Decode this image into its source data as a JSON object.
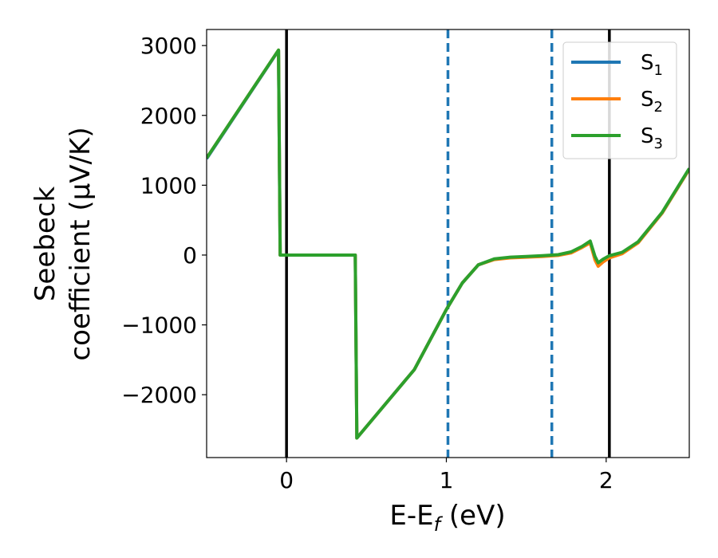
{
  "chart_data": {
    "type": "line",
    "xlabel": "E-E",
    "xlabel_sub": "f",
    "xlabel_unit": " (eV)",
    "ylabel_line1": "Seebeck",
    "ylabel_line2": "coefficient  (μV/K)",
    "xlim": [
      -0.5,
      2.52
    ],
    "ylim": [
      -2900,
      3230
    ],
    "xticks": [
      0,
      1,
      2
    ],
    "xtick_labels": [
      "0",
      "1",
      "2"
    ],
    "yticks": [
      -2000,
      -1000,
      0,
      1000,
      2000,
      3000
    ],
    "ytick_labels": [
      "−2000",
      "−1000",
      "0",
      "1000",
      "2000",
      "3000"
    ],
    "grid": false,
    "legend_position": "top-right",
    "vlines": [
      {
        "x": 0.0,
        "style": "solid",
        "color": "#000000"
      },
      {
        "x": 1.01,
        "style": "dashed",
        "color": "#1f77b4"
      },
      {
        "x": 1.66,
        "style": "dashed",
        "color": "#1f77b4"
      },
      {
        "x": 2.02,
        "style": "solid",
        "color": "#000000"
      }
    ],
    "series": [
      {
        "name": "S",
        "sub": "1",
        "color": "#1f77b4",
        "points": [
          [
            -0.5,
            1380
          ],
          [
            -0.05,
            2930
          ],
          [
            -0.04,
            0
          ],
          [
            0.43,
            0
          ],
          [
            0.44,
            -2620
          ],
          [
            0.8,
            -1640
          ],
          [
            1.0,
            -780
          ],
          [
            1.1,
            -400
          ],
          [
            1.2,
            -140
          ],
          [
            1.3,
            -60
          ],
          [
            1.4,
            -35
          ],
          [
            1.5,
            -25
          ],
          [
            1.6,
            -15
          ],
          [
            1.7,
            0
          ],
          [
            1.78,
            40
          ],
          [
            1.85,
            120
          ],
          [
            1.9,
            180
          ],
          [
            1.93,
            -50
          ],
          [
            1.95,
            -130
          ],
          [
            1.98,
            -80
          ],
          [
            2.02,
            -20
          ],
          [
            2.1,
            30
          ],
          [
            2.2,
            180
          ],
          [
            2.35,
            600
          ],
          [
            2.52,
            1230
          ]
        ]
      },
      {
        "name": "S",
        "sub": "2",
        "color": "#ff7f0e",
        "points": [
          [
            -0.5,
            1390
          ],
          [
            -0.05,
            2935
          ],
          [
            -0.04,
            0
          ],
          [
            0.43,
            0
          ],
          [
            0.44,
            -2620
          ],
          [
            0.8,
            -1640
          ],
          [
            1.0,
            -780
          ],
          [
            1.1,
            -400
          ],
          [
            1.2,
            -140
          ],
          [
            1.3,
            -65
          ],
          [
            1.4,
            -40
          ],
          [
            1.5,
            -30
          ],
          [
            1.6,
            -20
          ],
          [
            1.7,
            -5
          ],
          [
            1.78,
            30
          ],
          [
            1.85,
            110
          ],
          [
            1.9,
            175
          ],
          [
            1.93,
            -70
          ],
          [
            1.95,
            -160
          ],
          [
            1.98,
            -100
          ],
          [
            2.02,
            -40
          ],
          [
            2.1,
            20
          ],
          [
            2.2,
            175
          ],
          [
            2.35,
            600
          ],
          [
            2.52,
            1230
          ]
        ]
      },
      {
        "name": "S",
        "sub": "3",
        "color": "#2ca02c",
        "points": [
          [
            -0.5,
            1390
          ],
          [
            -0.05,
            2935
          ],
          [
            -0.04,
            0
          ],
          [
            0.43,
            0
          ],
          [
            0.44,
            -2620
          ],
          [
            0.8,
            -1640
          ],
          [
            1.0,
            -780
          ],
          [
            1.1,
            -400
          ],
          [
            1.2,
            -140
          ],
          [
            1.3,
            -55
          ],
          [
            1.4,
            -30
          ],
          [
            1.5,
            -20
          ],
          [
            1.6,
            -10
          ],
          [
            1.7,
            5
          ],
          [
            1.78,
            45
          ],
          [
            1.85,
            125
          ],
          [
            1.9,
            200
          ],
          [
            1.93,
            -20
          ],
          [
            1.95,
            -110
          ],
          [
            1.98,
            -60
          ],
          [
            2.02,
            -10
          ],
          [
            2.1,
            40
          ],
          [
            2.2,
            190
          ],
          [
            2.35,
            610
          ],
          [
            2.52,
            1240
          ]
        ]
      }
    ]
  }
}
